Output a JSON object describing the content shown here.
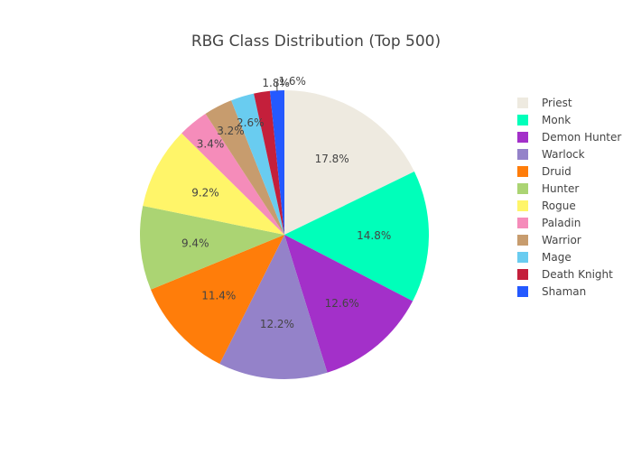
{
  "chart_data": {
    "type": "pie",
    "title": "RBG Class Distribution (Top 500)",
    "legend_position": "right",
    "slices": [
      {
        "label": "Priest",
        "value": 17.8,
        "display": "17.8%",
        "color": "#eeeae0"
      },
      {
        "label": "Monk",
        "value": 14.8,
        "display": "14.8%",
        "color": "#00ffba"
      },
      {
        "label": "Demon Hunter",
        "value": 12.6,
        "display": "12.6%",
        "color": "#a330c9"
      },
      {
        "label": "Warlock",
        "value": 12.2,
        "display": "12.2%",
        "color": "#9482c9"
      },
      {
        "label": "Druid",
        "value": 11.4,
        "display": "11.4%",
        "color": "#ff7d0a"
      },
      {
        "label": "Hunter",
        "value": 9.4,
        "display": "9.4%",
        "color": "#abd473"
      },
      {
        "label": "Rogue",
        "value": 9.2,
        "display": "9.2%",
        "color": "#fff569"
      },
      {
        "label": "Paladin",
        "value": 3.4,
        "display": "3.4%",
        "color": "#f58cba"
      },
      {
        "label": "Warrior",
        "value": 3.2,
        "display": "3.2%",
        "color": "#c79c6e"
      },
      {
        "label": "Mage",
        "value": 2.6,
        "display": "2.6%",
        "color": "#69ccf0"
      },
      {
        "label": "Death Knight",
        "value": 1.8,
        "display": "1.8%",
        "color": "#c41f3b"
      },
      {
        "label": "Shaman",
        "value": 1.6,
        "display": "1.6%",
        "color": "#2459ff"
      }
    ]
  }
}
